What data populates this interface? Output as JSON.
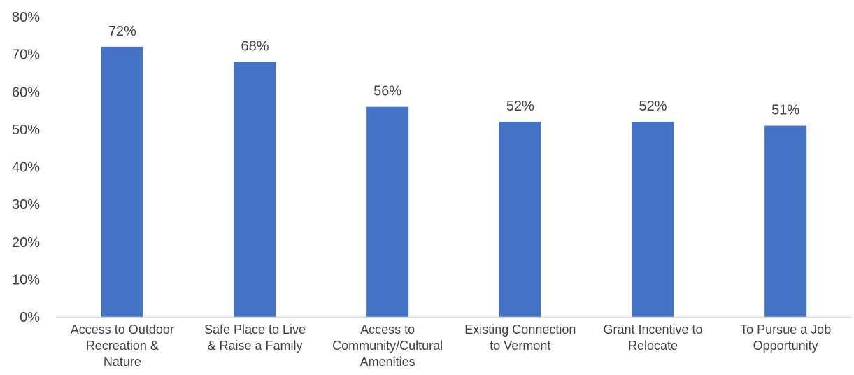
{
  "chart_data": {
    "type": "bar",
    "categories": [
      [
        "Access to Outdoor",
        "Recreation &",
        "Nature"
      ],
      [
        "Safe Place to Live",
        "& Raise a Family"
      ],
      [
        "Access to",
        "Community/Cultural",
        "Amenities"
      ],
      [
        "Existing Connection",
        "to Vermont"
      ],
      [
        "Grant Incentive to",
        "Relocate"
      ],
      [
        "To Pursue a Job",
        "Opportunity"
      ]
    ],
    "values": [
      72,
      68,
      56,
      52,
      52,
      51
    ],
    "data_labels": [
      "72%",
      "68%",
      "56%",
      "52%",
      "52%",
      "51%"
    ],
    "title": "",
    "xlabel": "",
    "ylabel": "",
    "ylim": [
      0,
      80
    ],
    "yticks": [
      0,
      10,
      20,
      30,
      40,
      50,
      60,
      70,
      80
    ],
    "ytick_labels": [
      "0%",
      "10%",
      "20%",
      "30%",
      "40%",
      "50%",
      "60%",
      "70%",
      "80%"
    ],
    "grid": false,
    "legend": "none",
    "colors": {
      "bar": "#4472C4",
      "text": "#404040",
      "axis": "#D9D9D9"
    }
  }
}
